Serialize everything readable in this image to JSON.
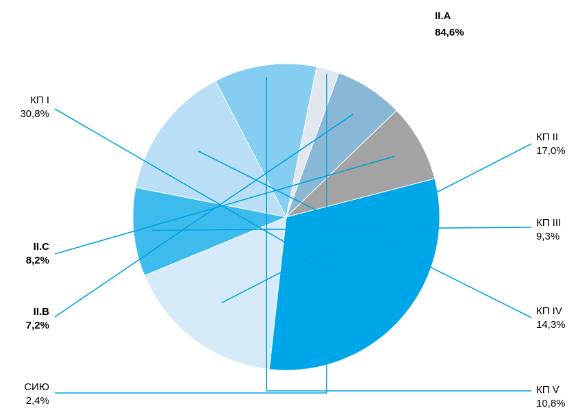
{
  "chart_data": {
    "type": "pie",
    "title": "",
    "group_annotation": {
      "label": "II.A",
      "value": "84,6%"
    },
    "slices": [
      {
        "label": "КП I",
        "value": 30.8,
        "value_label": "30,8%",
        "color": "#00a7e8",
        "bold": false
      },
      {
        "label": "КП II",
        "value": 17.0,
        "value_label": "17,0%",
        "color": "#d6ebf9",
        "bold": false
      },
      {
        "label": "КП III",
        "value": 9.3,
        "value_label": "9,3%",
        "color": "#3ebbed",
        "bold": false
      },
      {
        "label": "КП IV",
        "value": 14.3,
        "value_label": "14,3%",
        "color": "#b9def5",
        "bold": false
      },
      {
        "label": "КП V",
        "value": 10.8,
        "value_label": "10,8%",
        "color": "#86cdf2",
        "bold": false
      },
      {
        "label": "СИЮ",
        "value": 2.4,
        "value_label": "2,4%",
        "color": "#e1e7ee",
        "bold": false
      },
      {
        "label": "II.B",
        "value": 7.2,
        "value_label": "7,2%",
        "color": "#88b8d5",
        "bold": true
      },
      {
        "label": "II.C",
        "value": 8.2,
        "value_label": "8,2%",
        "color": "#a3a3a3",
        "bold": true
      }
    ],
    "legend": "none",
    "labels_with_leader_lines": true
  }
}
